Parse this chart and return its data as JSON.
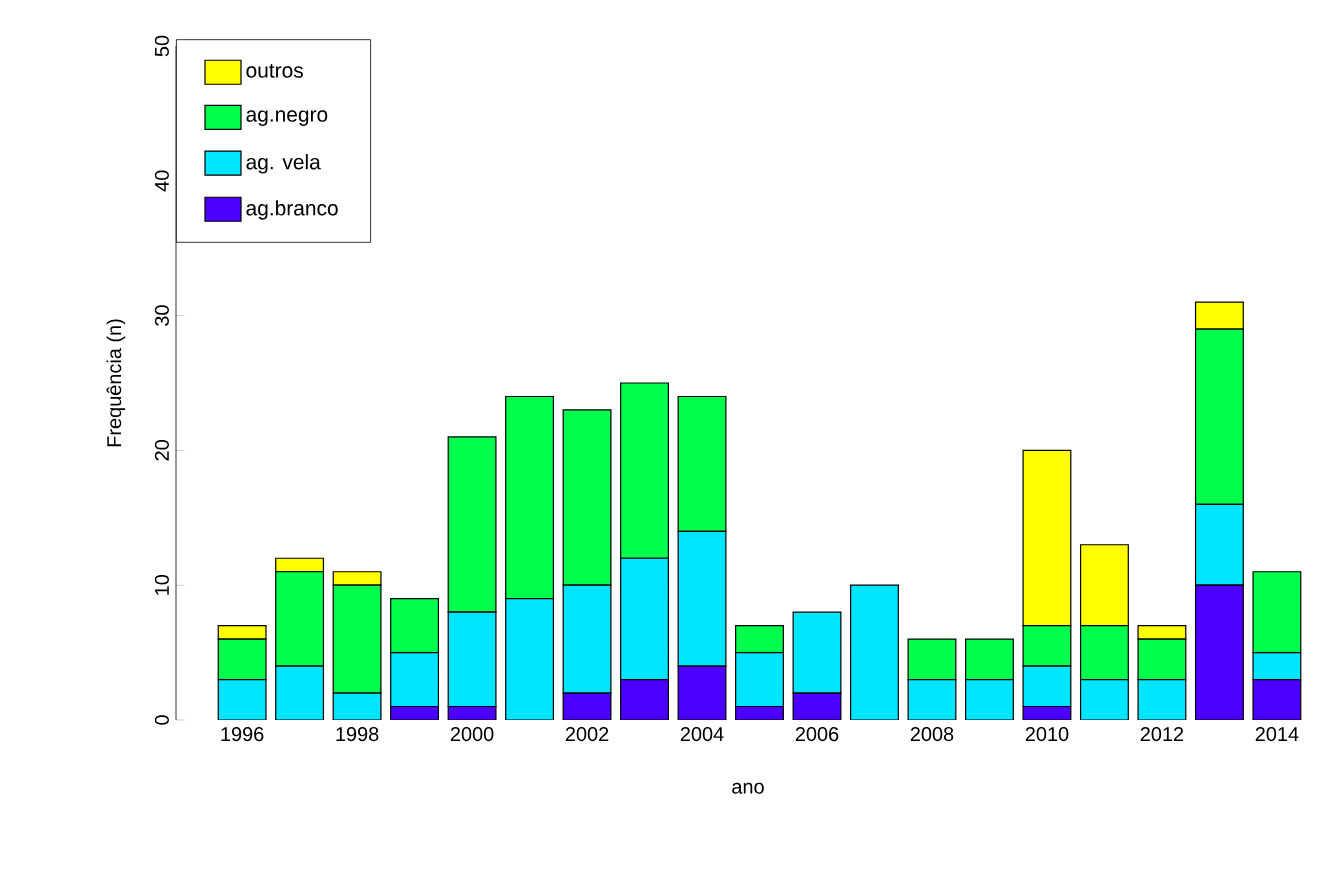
{
  "chart_data": {
    "type": "bar",
    "stacked": true,
    "xlabel": "ano",
    "ylabel": "Frequência (n)",
    "categories": [
      "1996",
      null,
      "1998",
      null,
      "2000",
      null,
      "2002",
      null,
      "2004",
      null,
      "2006",
      null,
      "2008",
      null,
      "2010",
      null,
      "2012",
      null,
      "2014"
    ],
    "series": [
      {
        "name": "ag.branco",
        "color": "#4c00ff",
        "values": [
          0,
          0,
          0,
          1,
          1,
          0,
          2,
          3,
          4,
          1,
          2,
          0,
          0,
          0,
          1,
          0,
          0,
          10,
          3
        ]
      },
      {
        "name": "ag. vela",
        "color": "#00e5ff",
        "values": [
          3,
          4,
          2,
          4,
          7,
          9,
          8,
          9,
          10,
          4,
          6,
          10,
          3,
          3,
          3,
          3,
          3,
          6,
          2
        ]
      },
      {
        "name": "ag.negro",
        "color": "#00ff4d",
        "values": [
          3,
          7,
          8,
          4,
          13,
          15,
          13,
          13,
          10,
          2,
          0,
          0,
          3,
          3,
          3,
          4,
          3,
          13,
          6
        ]
      },
      {
        "name": "outros",
        "color": "#ffff00",
        "values": [
          1,
          1,
          1,
          0,
          0,
          0,
          0,
          0,
          0,
          0,
          0,
          0,
          0,
          0,
          13,
          6,
          1,
          2,
          0
        ]
      }
    ],
    "ylim": [
      0,
      50
    ],
    "yticks": [
      0,
      10,
      20,
      30,
      40,
      50
    ],
    "grid": false,
    "legend": "top left"
  }
}
